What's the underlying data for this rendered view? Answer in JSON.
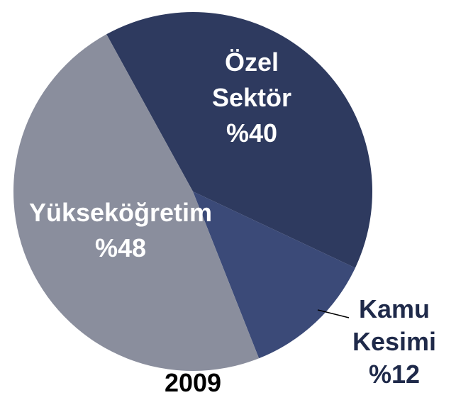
{
  "chart_data": {
    "type": "pie",
    "title": "2009",
    "categories": [
      "Özel Sektör",
      "Kamu Kesimi",
      "Yükseköğretim"
    ],
    "values": [
      40,
      12,
      48
    ],
    "value_labels": [
      "%40",
      "%12",
      "%48"
    ],
    "colors": [
      "#2e3a5f",
      "#3b4a78",
      "#8a8e9d"
    ]
  }
}
